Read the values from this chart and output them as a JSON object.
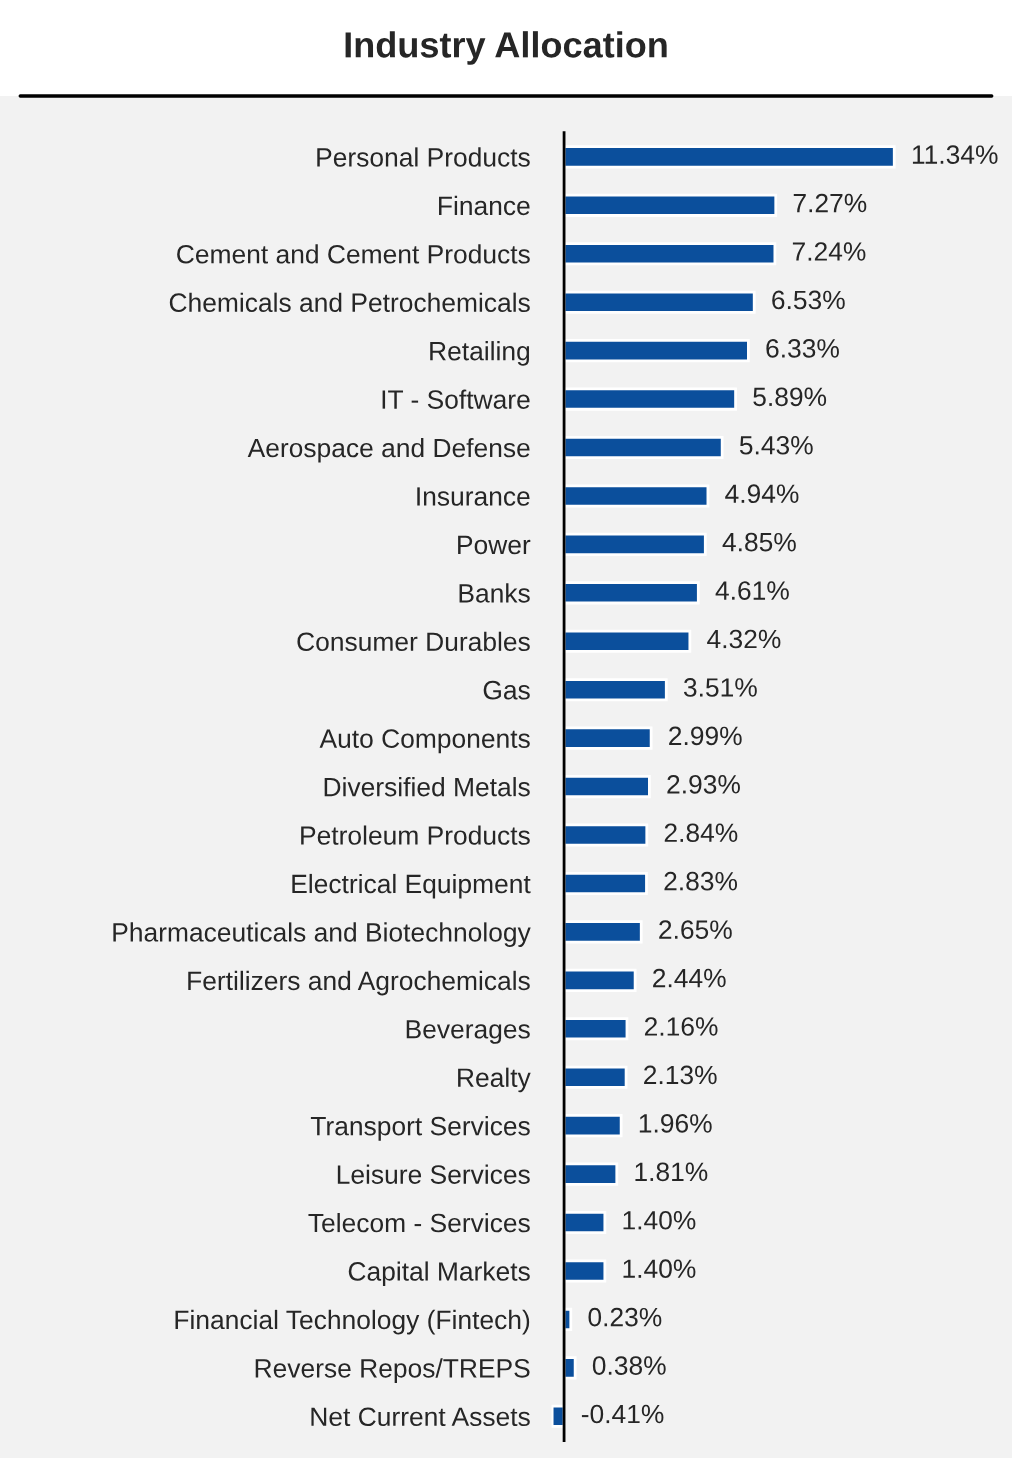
{
  "chart_data": {
    "type": "bar",
    "title": "Industry Allocation",
    "orientation": "horizontal",
    "color": "#0b4f9c",
    "categories": [
      "Personal Products",
      "Finance",
      "Cement and Cement Products",
      "Chemicals and Petrochemicals",
      "Retailing",
      "IT - Software",
      "Aerospace and Defense",
      "Insurance",
      "Power",
      "Banks",
      "Consumer Durables",
      "Gas",
      "Auto Components",
      "Diversified Metals",
      "Petroleum Products",
      "Electrical Equipment",
      "Pharmaceuticals and Biotechnology",
      "Fertilizers and Agrochemicals",
      "Beverages",
      "Realty",
      "Transport Services",
      "Leisure Services",
      "Telecom - Services",
      "Capital Markets",
      "Financial Technology (Fintech)",
      "Reverse Repos/TREPS",
      "Net Current Assets"
    ],
    "values": [
      11.34,
      7.27,
      7.24,
      6.53,
      6.33,
      5.89,
      5.43,
      4.94,
      4.85,
      4.61,
      4.32,
      3.51,
      2.99,
      2.93,
      2.84,
      2.83,
      2.65,
      2.44,
      2.16,
      2.13,
      1.96,
      1.81,
      1.4,
      1.4,
      0.23,
      0.38,
      -0.41
    ],
    "value_labels": [
      "11.34%",
      "7.27%",
      "7.24%",
      "6.53%",
      "6.33%",
      "5.89%",
      "5.43%",
      "4.94%",
      "4.85%",
      "4.61%",
      "4.32%",
      "3.51%",
      "2.99%",
      "2.93%",
      "2.84%",
      "2.83%",
      "2.65%",
      "2.44%",
      "2.16%",
      "2.13%",
      "1.96%",
      "1.81%",
      "1.40%",
      "1.40%",
      "0.23%",
      "0.38%",
      "-0.41%"
    ],
    "grid": false,
    "legend": false,
    "tick_labels": "y"
  }
}
